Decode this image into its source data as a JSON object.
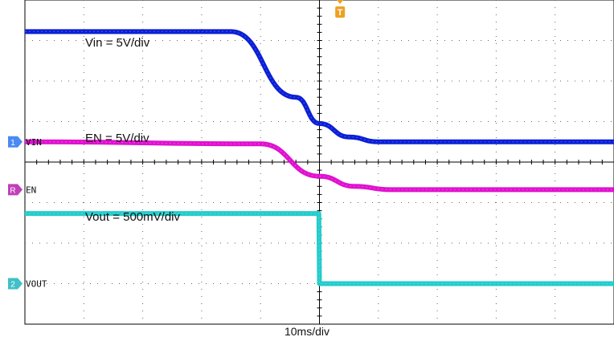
{
  "chart_data": {
    "type": "line",
    "title": "",
    "xlabel": "10ms/div",
    "ylabel": "",
    "grid": true,
    "xlim": [
      0,
      10
    ],
    "ylim": [
      -4,
      4
    ],
    "trigger_marker": "T",
    "annotations": [
      {
        "id": "vin",
        "text": "Vin = 5V/div"
      },
      {
        "id": "en",
        "text": "EN = 5V/div"
      },
      {
        "id": "vout",
        "text": "Vout = 500mV/div"
      }
    ],
    "series": [
      {
        "name": "VIN",
        "channel": "1",
        "color": "#0a1fd6",
        "x": [
          0,
          3.5,
          4.6,
          5.0,
          5.5,
          6.0,
          10
        ],
        "y": [
          3.22,
          3.22,
          1.6,
          0.95,
          0.62,
          0.5,
          0.5
        ]
      },
      {
        "name": "EN",
        "channel": "R",
        "color": "#e010d0",
        "x": [
          0,
          4.0,
          5.0,
          5.6,
          6.2,
          10
        ],
        "y": [
          0.5,
          0.45,
          -0.35,
          -0.6,
          -0.68,
          -0.68
        ]
      },
      {
        "name": "VOUT",
        "channel": "2",
        "color": "#22cccc",
        "x": [
          0,
          4.99,
          5.0,
          10
        ],
        "y": [
          -1.27,
          -1.27,
          -3.0,
          -3.0
        ]
      }
    ]
  }
}
